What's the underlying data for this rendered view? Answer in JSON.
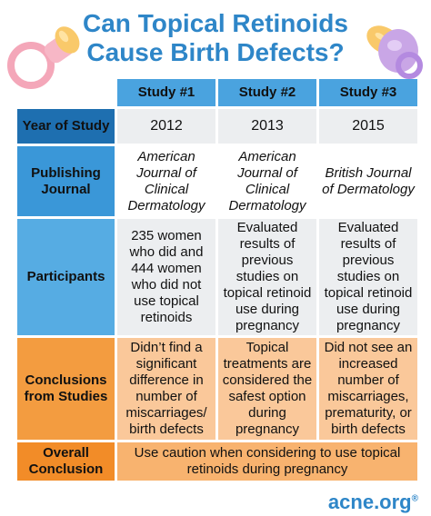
{
  "title": {
    "line1": "Can Topical Retinoids",
    "line2": "Cause Birth Defects?"
  },
  "columns": [
    "Study #1",
    "Study #2",
    "Study #3"
  ],
  "rows": {
    "year": {
      "label": "Year of Study",
      "values": [
        "2012",
        "2013",
        "2015"
      ]
    },
    "journal": {
      "label": "Publishing Journal",
      "values": [
        "American Journal of Clinical Dermatology",
        "American Journal of Clinical Dermatology",
        "British Journal of Dermatology"
      ]
    },
    "participants": {
      "label": "Participants",
      "values": [
        "235 women who did and 444 women who did not use topical retinoids",
        "Evaluated results of previous studies on topical retinoid use during pregnancy",
        "Evaluated results of previous studies on topical retinoid use during pregnancy"
      ]
    },
    "conclusions": {
      "label": "Conclusions from Studies",
      "values": [
        "Didn’t find a significant difference in number of miscarriages/ birth defects",
        "Topical treatments are considered the safest option during pregnancy",
        "Did not see an increased number of miscarriages, prematurity, or birth defects"
      ]
    },
    "overall": {
      "label": "Overall Conclusion",
      "value": "Use caution when considering to use topical retinoids during pregnancy"
    }
  },
  "logo": {
    "text": "acne.org",
    "mark": "®"
  },
  "icons": {
    "left": "pink-pacifier-icon",
    "right": "purple-pacifier-icon"
  },
  "colors": {
    "title": "#2E86C8",
    "header_blue": "#4AA3DF",
    "orange": "#F39C40"
  }
}
